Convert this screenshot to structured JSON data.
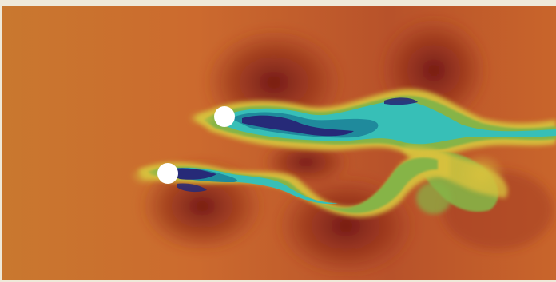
{
  "image": {
    "kind": "cfd-flow-visualization",
    "subject": "flow-past-two-cylinders",
    "colors": {
      "background_orange": "#cc6a2e",
      "background_red": "#a0361f",
      "dark_red": "#6e1612",
      "yellow": "#d7c13d",
      "green": "#86b447",
      "cyan": "#37bfb7",
      "teal": "#1f8a9c",
      "dark_blue": "#262a78",
      "cylinder": "#ffffff",
      "frame": "#efe9d9"
    },
    "cylinders": [
      {
        "name": "upper-cylinder"
      },
      {
        "name": "lower-cylinder"
      }
    ]
  }
}
